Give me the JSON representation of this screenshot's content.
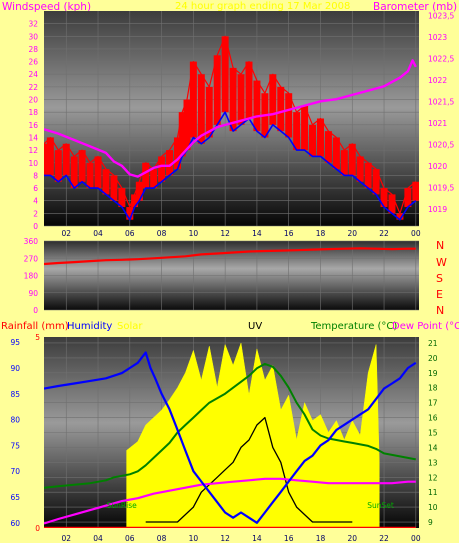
{
  "header": {
    "windspeed_label": "Windspeed (kph)",
    "barometer_label": "Barometer (mb)",
    "title": "24 hour graph ending 17 Mar 2008"
  },
  "wind_dir": {
    "compass": [
      "N",
      "W",
      "S",
      "E",
      "N"
    ]
  },
  "bottom": {
    "rainfall_label": "Rainfall (mm)",
    "humidity_label": "Humidity",
    "solar_label": "Solar",
    "uv_label": "UV",
    "temperature_label": "Temperature (°C)",
    "dewpoint_label": "Dew Point (°C)",
    "sunrise_label": "SunRise",
    "sunset_label": "SunSet"
  },
  "colors": {
    "background": "#ffff99",
    "gust": "#ff0000",
    "wind_avg": "#0000ff",
    "barometer": "#ff00ff",
    "direction": "#ff0000",
    "humidity": "#0000ff",
    "solar": "#ffff00",
    "uv": "#000000",
    "temperature": "#008000",
    "dew_point": "#ff00ff",
    "rain": "#ff0000"
  },
  "chart_data": [
    {
      "type": "line",
      "name": "wind-barometer",
      "x_ticks": [
        "02",
        "04",
        "06",
        "08",
        "10",
        "12",
        "14",
        "16",
        "18",
        "20",
        "22",
        "00"
      ],
      "y_left_ticks": [
        0,
        2,
        4,
        6,
        8,
        10,
        12,
        14,
        16,
        18,
        20,
        22,
        24,
        26,
        28,
        30,
        32
      ],
      "y_left_range": [
        0,
        34
      ],
      "y_right_ticks": [
        "1019",
        "1019,5",
        "1020",
        "1020,5",
        "1021",
        "1021,5",
        "1022",
        "1022,5",
        "1023",
        "1023,5"
      ],
      "y_right_range": [
        1018.6,
        1023.6
      ],
      "x_range": [
        0.6,
        24.2
      ],
      "gust": {
        "x": [
          0.6,
          1.0,
          1.5,
          2.0,
          2.5,
          3.0,
          3.5,
          4.0,
          4.5,
          5.0,
          5.5,
          6.0,
          6.3,
          6.6,
          7.0,
          7.5,
          8.0,
          8.5,
          9.0,
          9.3,
          9.6,
          10.0,
          10.5,
          11.0,
          11.5,
          12.0,
          12.5,
          13.0,
          13.5,
          14.0,
          14.5,
          15.0,
          15.5,
          16.0,
          16.5,
          17.0,
          17.5,
          18.0,
          18.5,
          19.0,
          19.5,
          20.0,
          20.5,
          21.0,
          21.5,
          22.0,
          22.5,
          23.0,
          23.5,
          24.0
        ],
        "y": [
          13,
          14,
          12,
          13,
          11,
          12,
          10,
          11,
          9,
          8,
          6,
          3,
          5,
          7,
          10,
          9,
          11,
          12,
          14,
          18,
          20,
          26,
          24,
          22,
          27,
          30,
          25,
          24,
          26,
          23,
          21,
          24,
          22,
          21,
          18,
          19,
          16,
          17,
          15,
          14,
          12,
          13,
          11,
          10,
          9,
          6,
          5,
          2,
          6,
          7
        ]
      },
      "wind_avg": {
        "x": [
          0.6,
          1.0,
          1.5,
          2.0,
          2.5,
          3.0,
          3.5,
          4.0,
          4.5,
          5.0,
          5.5,
          6.0,
          6.3,
          6.6,
          7.0,
          7.5,
          8.0,
          8.5,
          9.0,
          9.3,
          9.6,
          10.0,
          10.5,
          11.0,
          11.5,
          12.0,
          12.5,
          13.0,
          13.5,
          14.0,
          14.5,
          15.0,
          15.5,
          16.0,
          16.5,
          17.0,
          17.5,
          18.0,
          18.5,
          19.0,
          19.5,
          20.0,
          20.5,
          21.0,
          21.5,
          22.0,
          22.5,
          23.0,
          23.5,
          24.0
        ],
        "y": [
          8,
          8,
          7,
          8,
          6,
          7,
          6,
          6,
          5,
          4,
          3,
          1,
          3,
          4,
          6,
          6,
          7,
          8,
          9,
          11,
          12,
          14,
          13,
          14,
          16,
          18,
          15,
          16,
          17,
          15,
          14,
          16,
          15,
          14,
          12,
          12,
          11,
          11,
          10,
          9,
          8,
          8,
          7,
          6,
          5,
          3,
          2,
          1,
          3,
          4
        ]
      },
      "barometer": {
        "x": [
          0.6,
          1.5,
          2.5,
          3.5,
          4.5,
          5.0,
          5.5,
          6.0,
          6.5,
          7.0,
          7.5,
          8.0,
          8.5,
          9.0,
          9.5,
          10.0,
          10.5,
          11.0,
          11.5,
          12.0,
          12.5,
          13.0,
          13.5,
          14.0,
          15.0,
          16.0,
          17.0,
          18.0,
          19.0,
          20.0,
          21.0,
          22.0,
          22.5,
          23.0,
          23.5,
          23.8,
          24.0
        ],
        "y": [
          1020.85,
          1020.75,
          1020.6,
          1020.45,
          1020.3,
          1020.1,
          1020.0,
          1019.8,
          1019.75,
          1019.85,
          1019.95,
          1020.0,
          1020.0,
          1020.15,
          1020.35,
          1020.55,
          1020.7,
          1020.8,
          1020.9,
          1020.95,
          1021.0,
          1021.05,
          1021.1,
          1021.15,
          1021.2,
          1021.3,
          1021.4,
          1021.5,
          1021.55,
          1021.65,
          1021.75,
          1021.85,
          1021.95,
          1022.05,
          1022.2,
          1022.45,
          1022.3
        ]
      }
    },
    {
      "type": "line",
      "name": "wind-direction",
      "x_ticks": [
        "02",
        "04",
        "06",
        "08",
        "10",
        "12",
        "14",
        "16",
        "18",
        "20",
        "22",
        "00"
      ],
      "y_ticks": [
        0,
        90,
        180,
        270,
        360
      ],
      "y_range": [
        0,
        360
      ],
      "x_range": [
        0.6,
        24.2
      ],
      "direction": {
        "x": [
          0.6,
          1.5,
          2.5,
          3.5,
          4.5,
          5.5,
          6.5,
          7.5,
          8.5,
          9.5,
          10.5,
          11.5,
          12.5,
          13.5,
          14.5,
          15.5,
          16.5,
          17.5,
          18.5,
          19.5,
          20.5,
          21.5,
          22.5,
          23.5,
          24.0
        ],
        "y": [
          240,
          245,
          250,
          255,
          260,
          262,
          265,
          270,
          275,
          280,
          290,
          295,
          300,
          305,
          308,
          310,
          312,
          315,
          318,
          320,
          322,
          320,
          318,
          320,
          320
        ]
      }
    },
    {
      "type": "line",
      "name": "humidity-temperature",
      "x_ticks": [
        "02",
        "04",
        "06",
        "08",
        "10",
        "12",
        "14",
        "16",
        "18",
        "20",
        "22",
        "00"
      ],
      "y_humidity_ticks": [
        60,
        65,
        70,
        75,
        80,
        85,
        90,
        95
      ],
      "y_humidity_range": [
        59,
        96
      ],
      "y_rain_ticks": [
        0,
        5
      ],
      "y_rain_range": [
        0,
        5
      ],
      "y_temp_ticks": [
        9,
        10,
        11,
        12,
        13,
        14,
        15,
        16,
        17,
        18,
        19,
        20,
        21
      ],
      "y_temp_range": [
        8.6,
        21.4
      ],
      "x_range": [
        0.6,
        24.2
      ],
      "sunrise_hour": 5.8,
      "sunset_hour": 21.7,
      "humidity": {
        "x": [
          0.6,
          1.5,
          2.5,
          3.5,
          4.5,
          5.0,
          5.5,
          6.0,
          6.5,
          7.0,
          7.3,
          7.6,
          8.0,
          8.5,
          9.0,
          9.5,
          10.0,
          10.5,
          11.0,
          11.5,
          12.0,
          12.5,
          13.0,
          13.5,
          14.0,
          14.5,
          15.0,
          15.5,
          16.0,
          16.5,
          17.0,
          17.5,
          18.0,
          18.5,
          19.0,
          19.5,
          20.0,
          20.5,
          21.0,
          21.5,
          22.0,
          22.5,
          23.0,
          23.5,
          24.0
        ],
        "y": [
          86,
          86.5,
          87,
          87.5,
          88,
          88.5,
          89,
          90,
          91,
          93,
          90,
          88,
          85,
          82,
          78,
          74,
          70,
          68,
          66,
          64,
          62,
          61,
          62,
          61,
          60,
          62,
          64,
          66,
          68,
          70,
          72,
          73,
          75,
          76,
          78,
          79,
          80,
          81,
          82,
          84,
          86,
          87,
          88,
          90,
          91
        ]
      },
      "temperature": {
        "x": [
          0.6,
          1.5,
          2.5,
          3.5,
          4.5,
          5.0,
          5.5,
          6.0,
          6.5,
          7.0,
          7.5,
          8.0,
          8.5,
          9.0,
          9.5,
          10.0,
          10.5,
          11.0,
          11.5,
          12.0,
          12.5,
          13.0,
          13.5,
          14.0,
          14.5,
          15.0,
          15.5,
          16.0,
          16.5,
          17.0,
          17.5,
          18.0,
          18.5,
          19.0,
          19.5,
          20.0,
          20.5,
          21.0,
          21.5,
          22.0,
          22.5,
          23.0,
          23.5,
          24.0
        ],
        "y": [
          11.3,
          11.4,
          11.5,
          11.6,
          11.8,
          12.0,
          12.1,
          12.2,
          12.4,
          12.8,
          13.3,
          13.8,
          14.3,
          15.0,
          15.5,
          16.0,
          16.5,
          17.0,
          17.3,
          17.6,
          18.0,
          18.4,
          18.8,
          19.3,
          19.6,
          19.4,
          18.8,
          18.0,
          17.0,
          16.2,
          15.2,
          14.8,
          14.6,
          14.5,
          14.4,
          14.3,
          14.2,
          14.1,
          13.9,
          13.6,
          13.5,
          13.4,
          13.3,
          13.2
        ]
      },
      "dew_point": {
        "x": [
          0.6,
          1.5,
          2.5,
          3.5,
          4.5,
          5.5,
          6.5,
          7.5,
          8.5,
          9.5,
          10.5,
          11.5,
          12.5,
          13.5,
          14.5,
          15.5,
          16.5,
          17.5,
          18.5,
          19.5,
          20.5,
          21.5,
          22.5,
          23.5,
          24.0
        ],
        "y": [
          8.9,
          9.2,
          9.5,
          9.8,
          10.1,
          10.4,
          10.6,
          10.9,
          11.1,
          11.3,
          11.5,
          11.6,
          11.7,
          11.8,
          11.9,
          11.9,
          11.8,
          11.7,
          11.6,
          11.6,
          11.6,
          11.6,
          11.6,
          11.7,
          11.7
        ]
      },
      "solar": {
        "x": [
          5.8,
          6.5,
          7.0,
          7.5,
          8.0,
          8.5,
          9.0,
          9.5,
          10.0,
          10.5,
          11.0,
          11.5,
          12.0,
          12.5,
          13.0,
          13.5,
          14.0,
          14.5,
          15.0,
          15.5,
          16.0,
          16.5,
          17.0,
          17.5,
          18.0,
          18.5,
          19.0,
          19.5,
          20.0,
          20.5,
          21.0,
          21.5,
          21.7
        ],
        "y": [
          13.8,
          14.4,
          15.5,
          16.0,
          16.5,
          17.2,
          18.0,
          19.0,
          20.5,
          18.5,
          20.8,
          18.0,
          20.9,
          19.5,
          21.0,
          17.5,
          20.6,
          18.5,
          19.5,
          16.5,
          17.5,
          14.5,
          17.0,
          15.8,
          16.2,
          15.0,
          15.8,
          14.5,
          15.8,
          14.8,
          19.0,
          20.9,
          13.0
        ]
      },
      "uv": {
        "x": [
          7.0,
          8.0,
          9.0,
          10.0,
          10.5,
          11.0,
          11.5,
          12.0,
          12.5,
          13.0,
          13.5,
          14.0,
          14.5,
          15.0,
          15.5,
          16.0,
          16.5,
          17.0,
          17.5,
          18.0,
          19.0,
          20.0
        ],
        "y": [
          9,
          9,
          9,
          10,
          11,
          11.5,
          12,
          12.5,
          13,
          14,
          14.5,
          15.5,
          16,
          14,
          13,
          11,
          10,
          9.5,
          9,
          9,
          9,
          9
        ]
      },
      "rain": {
        "x": [
          0.6,
          24.0
        ],
        "y": [
          0,
          0
        ]
      }
    }
  ]
}
